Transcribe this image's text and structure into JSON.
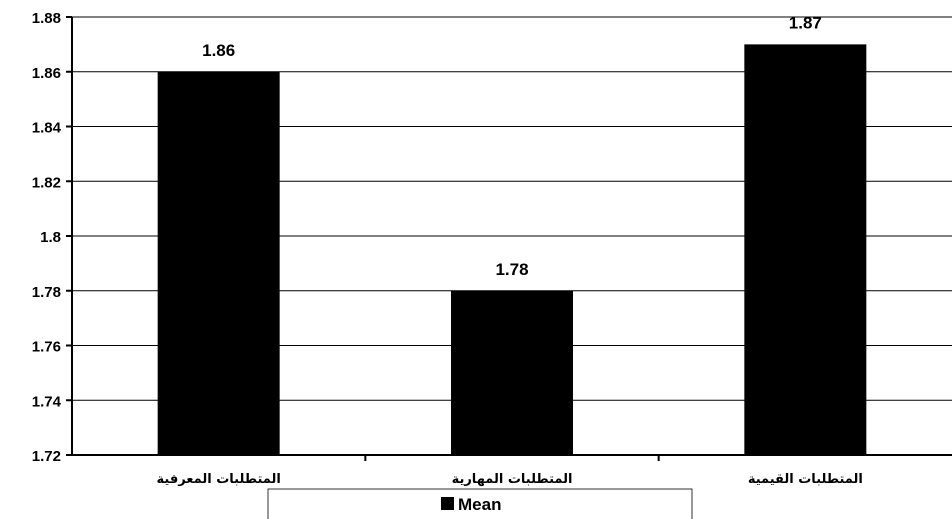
{
  "chart_data": {
    "type": "bar",
    "title": "",
    "xlabel": "",
    "ylabel": "",
    "categories": [
      "المتطلبات المعرفية",
      "المتطلبات المهارية",
      "المتطلبات القيمية"
    ],
    "series": [
      {
        "name": "Mean",
        "values": [
          1.86,
          1.78,
          1.87
        ],
        "color": "#000000"
      }
    ],
    "ylim": [
      1.72,
      1.88
    ],
    "yticks": [
      "1.72",
      "1.74",
      "1.76",
      "1.78",
      "1.8",
      "1.82",
      "1.84",
      "1.86",
      "1.88"
    ],
    "data_labels": [
      "1.86",
      "1.78",
      "1.87"
    ],
    "grid": true,
    "legend": {
      "entries": [
        "Mean"
      ],
      "position": "bottom"
    }
  }
}
